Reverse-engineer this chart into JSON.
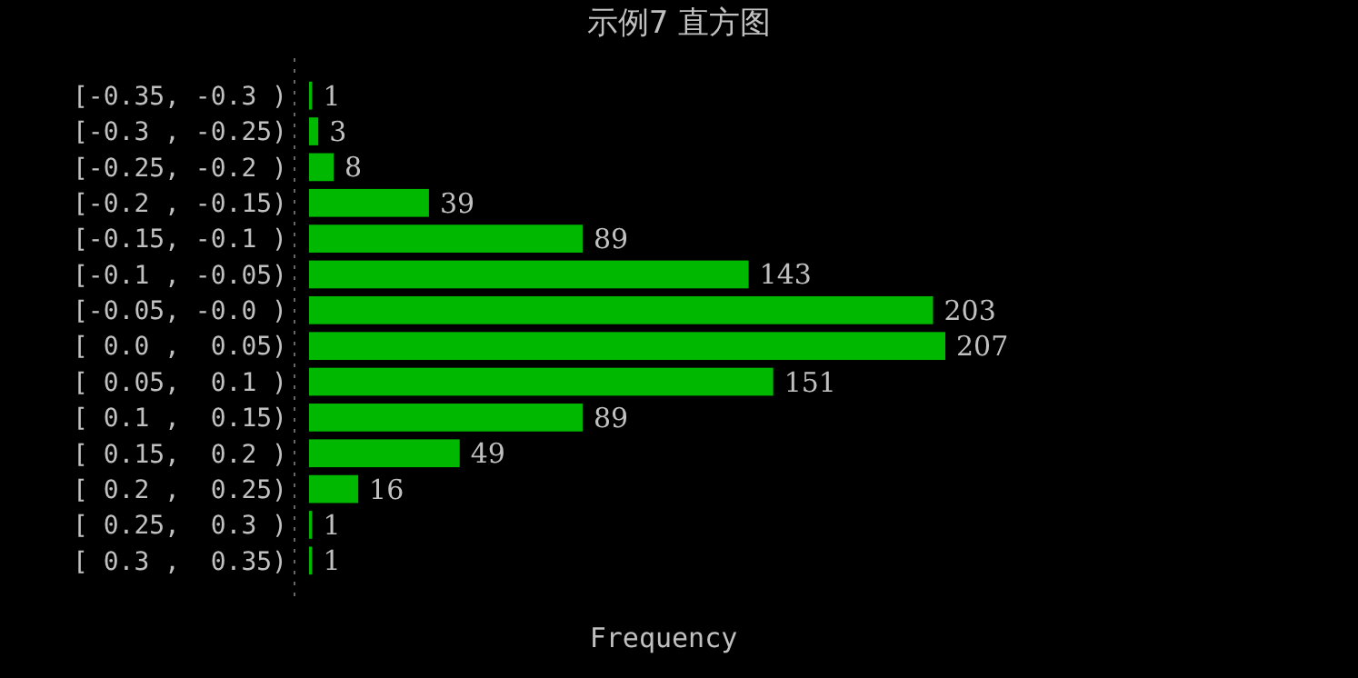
{
  "chart_data": {
    "type": "bar",
    "orientation": "horizontal",
    "title": "示例7 直方图",
    "xlabel": "Frequency",
    "categories": [
      "[-0.35, -0.3 )",
      "[-0.3 , -0.25)",
      "[-0.25, -0.2 )",
      "[-0.2 , -0.15)",
      "[-0.15, -0.1 )",
      "[-0.1 , -0.05)",
      "[-0.05, -0.0 )",
      "[ 0.0 ,  0.05)",
      "[ 0.05,  0.1 )",
      "[ 0.1 ,  0.15)",
      "[ 0.15,  0.2 )",
      "[ 0.2 ,  0.25)",
      "[ 0.25,  0.3 )",
      "[ 0.3 ,  0.35)"
    ],
    "values": [
      1,
      3,
      8,
      39,
      89,
      143,
      203,
      207,
      151,
      89,
      49,
      16,
      1,
      1
    ],
    "color": "#00b800",
    "data_labels": true
  }
}
